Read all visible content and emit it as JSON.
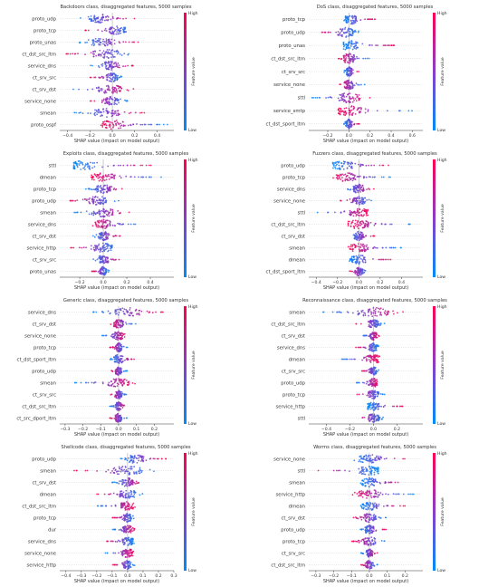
{
  "colorbar": {
    "high": "High",
    "low": "Low",
    "label": "Feature value",
    "color_high": "#ff0052",
    "color_low": "#008bfb"
  },
  "chart_data": [
    {
      "type": "scatter",
      "title": "Backdoors class, disaggregated features, 5000 samples",
      "xlabel": "SHAP value (impact on model output)",
      "xlim": [
        -0.47,
        0.55
      ],
      "xticks": [
        -0.4,
        -0.2,
        0.0,
        0.2,
        0.4
      ],
      "xtick_labels": [
        "−0.4",
        "−0.2",
        "0.0",
        "0.2",
        "0.4"
      ],
      "features": [
        "proto_udp",
        "proto_tcp",
        "proto_unas",
        "ct_dst_src_ltm",
        "service_dns",
        "ct_srv_src",
        "ct_srv_dst",
        "service_none",
        "smean",
        "proto_ospf"
      ],
      "ranges": [
        [
          -0.3,
          0.2
        ],
        [
          -0.25,
          0.2
        ],
        [
          -0.3,
          0.25
        ],
        [
          -0.45,
          0.25
        ],
        [
          -0.2,
          0.2
        ],
        [
          -0.2,
          0.1
        ],
        [
          -0.4,
          0.2
        ],
        [
          -0.2,
          0.15
        ],
        [
          -0.35,
          0.3
        ],
        [
          -0.1,
          0.5
        ]
      ],
      "centers": [
        -0.12,
        0.05,
        -0.1,
        -0.05,
        -0.02,
        0.0,
        -0.02,
        0.0,
        -0.05,
        0.0
      ]
    },
    {
      "type": "scatter",
      "title": "DoS class, disaggregated features, 5000 samples",
      "xlabel": "SHAP value (impact on model output)",
      "xlim": [
        -0.38,
        0.7
      ],
      "xticks": [
        -0.2,
        0.0,
        0.2,
        0.4,
        0.6
      ],
      "xtick_labels": [
        "−0.2",
        "0.0",
        "0.2",
        "0.4",
        "0.6"
      ],
      "features": [
        "proto_tcp",
        "proto_udp",
        "proto_unas",
        "ct_dst_src_ltm",
        "ct_srv_src",
        "service_none",
        "sttl",
        "service_smtp",
        "ct_dst_sport_ltm"
      ],
      "ranges": [
        [
          -0.05,
          0.25
        ],
        [
          -0.3,
          0.1
        ],
        [
          -0.05,
          0.45
        ],
        [
          -0.1,
          0.2
        ],
        [
          -0.05,
          0.1
        ],
        [
          -0.1,
          0.15
        ],
        [
          -0.35,
          0.2
        ],
        [
          -0.1,
          0.6
        ],
        [
          -0.05,
          0.1
        ]
      ],
      "centers": [
        0.02,
        -0.03,
        0.0,
        0.0,
        0.0,
        0.0,
        0.0,
        0.0,
        0.0
      ]
    },
    {
      "type": "scatter",
      "title": "Exploits class, disaggregated features, 5000 samples",
      "xlabel": "SHAP value (impact on model output)",
      "xlim": [
        -0.37,
        0.6
      ],
      "xticks": [
        -0.2,
        0.0,
        0.2,
        0.4
      ],
      "xtick_labels": [
        "−0.2",
        "0.0",
        "0.2",
        "0.4"
      ],
      "features": [
        "sttl",
        "dmean",
        "proto_tcp",
        "proto_udp",
        "smean",
        "service_dns",
        "ct_srv_dst",
        "service_http",
        "ct_srv_src",
        "proto_unas"
      ],
      "ranges": [
        [
          -0.25,
          0.45
        ],
        [
          -0.1,
          0.5
        ],
        [
          -0.15,
          0.2
        ],
        [
          -0.3,
          0.15
        ],
        [
          -0.25,
          0.25
        ],
        [
          -0.1,
          0.3
        ],
        [
          -0.1,
          0.15
        ],
        [
          -0.3,
          0.15
        ],
        [
          -0.1,
          0.15
        ],
        [
          -0.1,
          0.05
        ]
      ],
      "centers": [
        -0.17,
        0.0,
        0.0,
        -0.05,
        0.0,
        0.0,
        0.0,
        0.0,
        0.0,
        0.0
      ]
    },
    {
      "type": "scatter",
      "title": "Fuzzers class, disaggregated features, 5000 samples",
      "xlabel": "SHAP value (impact on model output)",
      "xlim": [
        -0.47,
        0.6
      ],
      "xticks": [
        -0.4,
        -0.2,
        0.0,
        0.2,
        0.4
      ],
      "xtick_labels": [
        "−0.4",
        "−0.2",
        "0.0",
        "0.2",
        "0.4"
      ],
      "features": [
        "proto_udp",
        "proto_tcp",
        "service_dns",
        "service_none",
        "sttl",
        "ct_dst_src_ltm",
        "ct_srv_dst",
        "smean",
        "dmean",
        "ct_dst_sport_ltm"
      ],
      "ranges": [
        [
          -0.25,
          0.3
        ],
        [
          -0.25,
          0.3
        ],
        [
          -0.15,
          0.15
        ],
        [
          -0.2,
          0.15
        ],
        [
          -0.4,
          0.1
        ],
        [
          -0.1,
          0.5
        ],
        [
          -0.1,
          0.15
        ],
        [
          -0.1,
          0.4
        ],
        [
          -0.1,
          0.3
        ],
        [
          -0.1,
          0.1
        ]
      ],
      "centers": [
        -0.15,
        -0.12,
        0.0,
        0.0,
        0.0,
        0.0,
        0.0,
        0.0,
        0.0,
        0.0
      ]
    },
    {
      "type": "scatter",
      "title": "Generic class, disaggregated features, 5000 samples",
      "xlabel": "SHAP value (impact on model output)",
      "xlim": [
        -0.33,
        0.31
      ],
      "xticks": [
        -0.3,
        -0.2,
        -0.1,
        0.0,
        0.1,
        0.2
      ],
      "xtick_labels": [
        "−0.3",
        "−0.2",
        "−0.1",
        "0.0",
        "0.1",
        "0.2"
      ],
      "features": [
        "service_dns",
        "ct_srv_dst",
        "service_none",
        "proto_tcp",
        "ct_dst_sport_ltm",
        "proto_udp",
        "smean",
        "ct_srv_src",
        "ct_dst_src_ltm",
        "ct_src_dport_ltm"
      ],
      "ranges": [
        [
          -0.15,
          0.25
        ],
        [
          -0.05,
          0.1
        ],
        [
          -0.1,
          0.05
        ],
        [
          -0.05,
          0.05
        ],
        [
          -0.05,
          0.1
        ],
        [
          -0.05,
          0.05
        ],
        [
          -0.25,
          0.1
        ],
        [
          -0.05,
          0.05
        ],
        [
          -0.05,
          0.05
        ],
        [
          -0.05,
          0.05
        ]
      ],
      "centers": [
        0.05,
        0.0,
        0.0,
        0.0,
        0.0,
        0.0,
        0.0,
        0.0,
        0.0,
        0.0
      ]
    },
    {
      "type": "scatter",
      "title": "Reconnaissance class, disaggregated features, 5000 samples",
      "xlabel": "SHAP value (impact on model output)",
      "xlim": [
        -0.55,
        0.42
      ],
      "xticks": [
        -0.4,
        -0.2,
        0.0,
        0.2
      ],
      "xtick_labels": [
        "−0.4",
        "−0.2",
        "0.0",
        "0.2"
      ],
      "features": [
        "smean",
        "ct_dst_src_ltm",
        "ct_srv_dst",
        "service_dns",
        "dmean",
        "ct_srv_src",
        "proto_udp",
        "proto_tcp",
        "service_http",
        "sttl"
      ],
      "ranges": [
        [
          -0.45,
          0.3
        ],
        [
          -0.15,
          0.1
        ],
        [
          -0.1,
          0.05
        ],
        [
          -0.15,
          0.05
        ],
        [
          -0.3,
          0.05
        ],
        [
          -0.1,
          0.05
        ],
        [
          -0.15,
          0.05
        ],
        [
          -0.15,
          0.1
        ],
        [
          -0.05,
          0.25
        ],
        [
          -0.15,
          0.1
        ]
      ],
      "centers": [
        0.0,
        0.0,
        0.0,
        0.0,
        0.0,
        0.0,
        0.0,
        0.0,
        0.0,
        0.0
      ]
    },
    {
      "type": "scatter",
      "title": "Shellcode class, disaggregated features, 5000 samples",
      "xlabel": "SHAP value (impact on model output)",
      "xlim": [
        -0.44,
        0.3
      ],
      "xticks": [
        -0.4,
        -0.3,
        -0.2,
        -0.1,
        0.0,
        0.1,
        0.2,
        0.3
      ],
      "xtick_labels": [
        "−0.4",
        "−0.3",
        "−0.2",
        "−0.1",
        "0.0",
        "0.1",
        "0.2",
        "0.3"
      ],
      "features": [
        "proto_udp",
        "smean",
        "ct_srv_dst",
        "dmean",
        "ct_dst_src_ltm",
        "proto_tcp",
        "dur",
        "service_dns",
        "service_none",
        "service_http"
      ],
      "ranges": [
        [
          -0.05,
          0.25
        ],
        [
          -0.35,
          0.2
        ],
        [
          -0.1,
          0.1
        ],
        [
          -0.2,
          0.1
        ],
        [
          -0.2,
          0.05
        ],
        [
          -0.1,
          0.05
        ],
        [
          -0.1,
          0.05
        ],
        [
          -0.15,
          0.05
        ],
        [
          -0.15,
          0.05
        ],
        [
          -0.1,
          0.05
        ]
      ],
      "centers": [
        0.05,
        0.0,
        0.0,
        0.0,
        0.0,
        0.0,
        0.0,
        0.0,
        0.0,
        0.0
      ]
    },
    {
      "type": "scatter",
      "title": "Worms class, disaggregated features, 5000 samples",
      "xlabel": "SHAP value (impact on model output)",
      "xlim": [
        -0.34,
        0.3
      ],
      "xticks": [
        -0.3,
        -0.2,
        -0.1,
        0.0,
        0.1,
        0.2
      ],
      "xtick_labels": [
        "−0.3",
        "−0.2",
        "−0.1",
        "0.0",
        "0.1",
        "0.2"
      ],
      "features": [
        "service_none",
        "sttl",
        "smean",
        "service_http",
        "dmean",
        "ct_srv_dst",
        "proto_udp",
        "proto_tcp",
        "ct_srv_src",
        "ct_dst_src_ltm"
      ],
      "ranges": [
        [
          -0.1,
          0.25
        ],
        [
          -0.3,
          0.05
        ],
        [
          -0.05,
          0.2
        ],
        [
          -0.1,
          0.25
        ],
        [
          -0.05,
          0.2
        ],
        [
          -0.1,
          0.1
        ],
        [
          -0.05,
          0.1
        ],
        [
          -0.1,
          0.1
        ],
        [
          -0.05,
          0.05
        ],
        [
          -0.05,
          0.05
        ]
      ],
      "centers": [
        0.0,
        0.0,
        0.0,
        0.0,
        0.0,
        0.0,
        0.0,
        0.0,
        0.0,
        0.0
      ]
    }
  ]
}
